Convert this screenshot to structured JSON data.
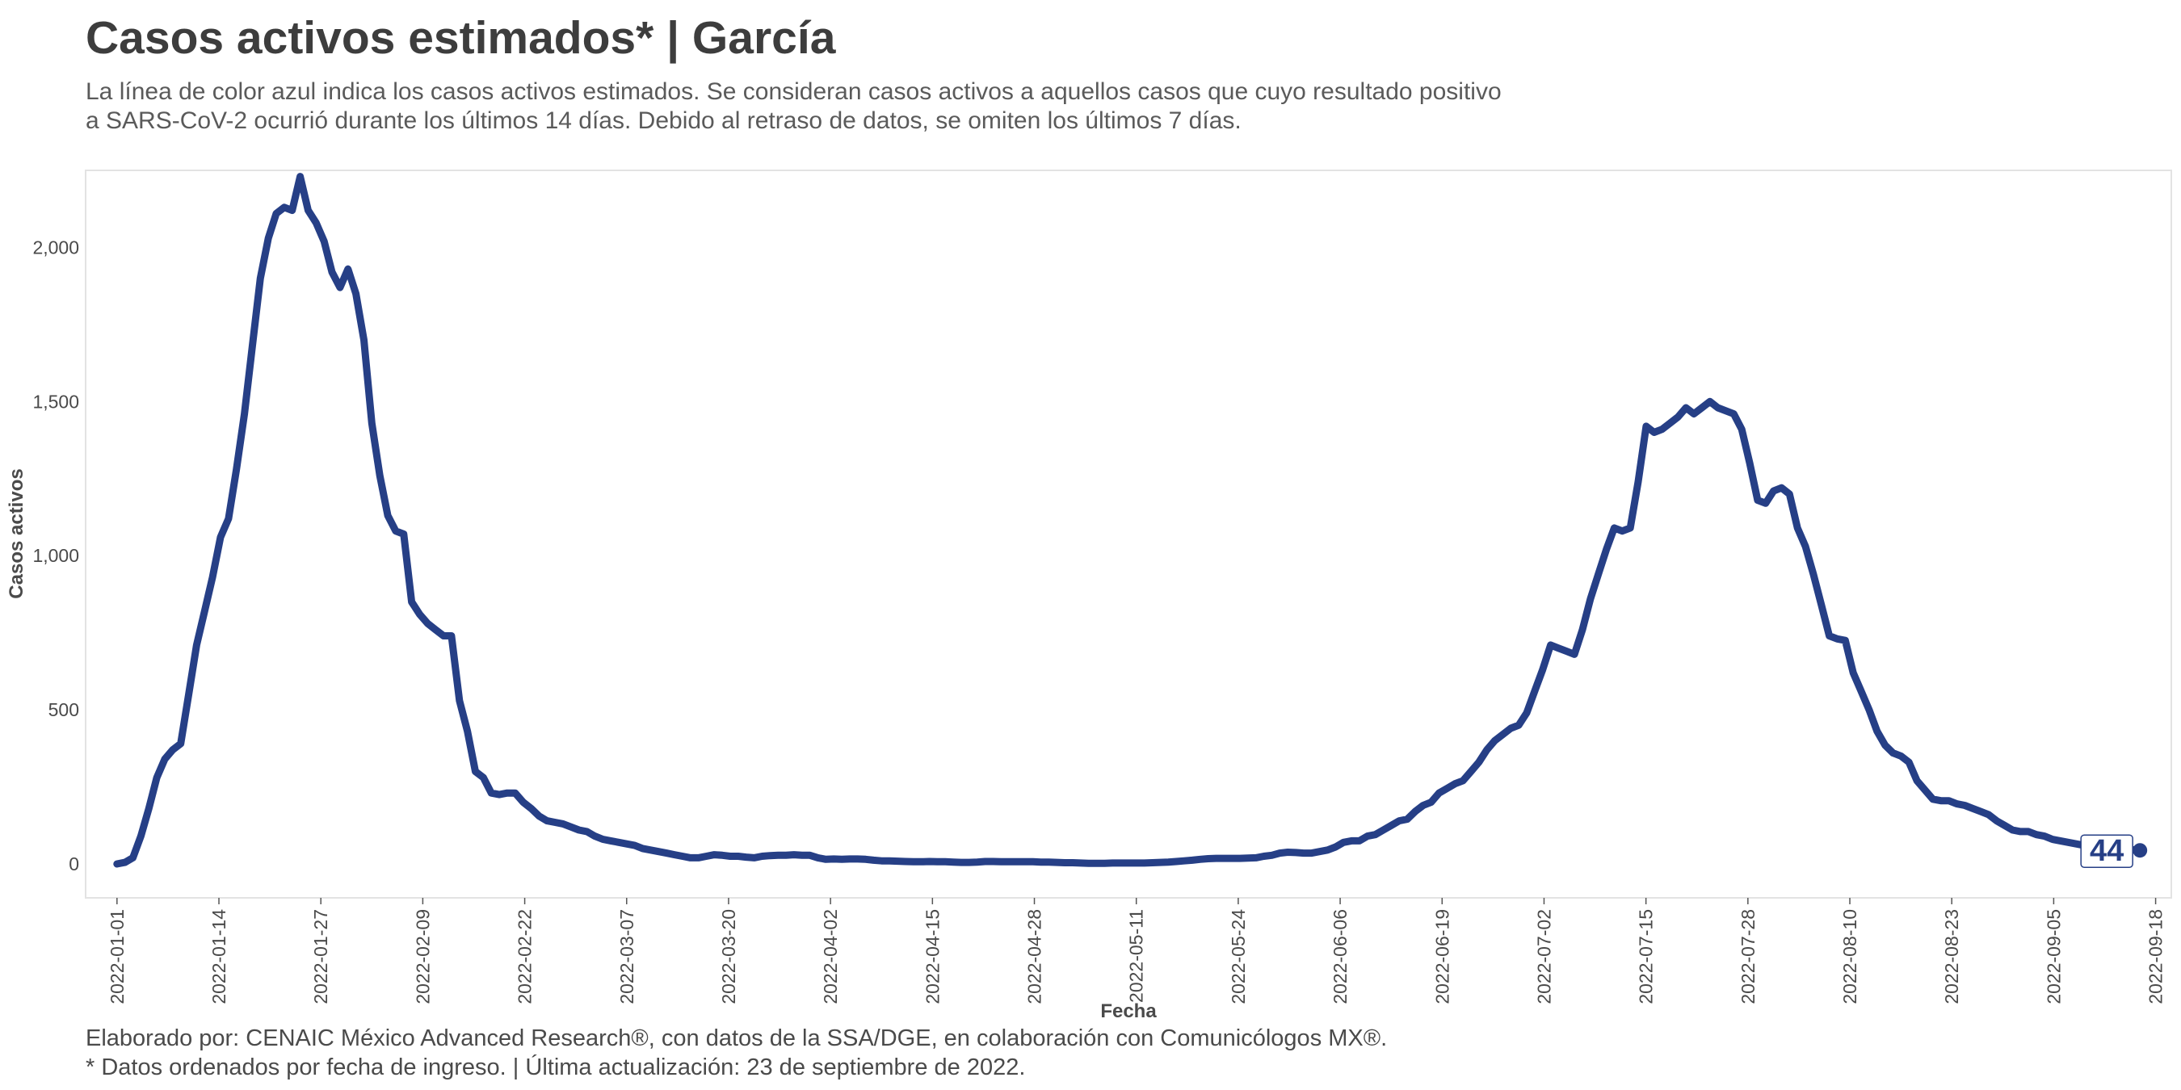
{
  "header": {
    "title": "Casos activos estimados* | García",
    "subtitle_line1": "La línea de color azul indica los casos activos estimados. Se consideran casos activos a aquellos casos que cuyo resultado positivo",
    "subtitle_line2": "a SARS-CoV-2 ocurrió durante los últimos 14 días. Debido al retraso de datos, se omiten los últimos 7 días."
  },
  "footer": {
    "line1": "Elaborado por: CENAIC México Advanced Research®, con datos de la SSA/DGE, en colaboración con Comunicólogos MX®.",
    "line2": "* Datos ordenados por fecha de ingreso. | Última actualización: 23 de septiembre de 2022."
  },
  "colors": {
    "line": "#263f86",
    "panel_border": "#e3e3e3"
  },
  "chart_data": {
    "type": "line",
    "title": "Casos activos estimados* | García",
    "xlabel": "Fecha",
    "ylabel": "Casos activos",
    "x_start": "2022-01-01",
    "x_end": "2022-09-16",
    "xlim": [
      "2021-12-28",
      "2022-09-20"
    ],
    "ylim": [
      -110,
      2250
    ],
    "y_ticks": [
      0,
      500,
      1000,
      1500,
      2000
    ],
    "y_tick_labels": [
      "0",
      "500",
      "1,000",
      "1,500",
      "2,000"
    ],
    "x_ticks": [
      "2022-01-01",
      "2022-01-14",
      "2022-01-27",
      "2022-02-09",
      "2022-02-22",
      "2022-03-07",
      "2022-03-20",
      "2022-04-02",
      "2022-04-15",
      "2022-04-28",
      "2022-05-11",
      "2022-05-24",
      "2022-06-06",
      "2022-06-19",
      "2022-07-02",
      "2022-07-15",
      "2022-07-28",
      "2022-08-10",
      "2022-08-23",
      "2022-09-05",
      "2022-09-18"
    ],
    "grid": false,
    "last_value_label": "44",
    "series": [
      {
        "values": [
          0,
          5,
          20,
          90,
          180,
          280,
          340,
          370,
          390,
          550,
          710,
          820,
          930,
          1060,
          1120,
          1280,
          1460,
          1680,
          1900,
          2030,
          2110,
          2130,
          2120,
          2230,
          2120,
          2080,
          2020,
          1920,
          1870,
          1930,
          1850,
          1700,
          1430,
          1260,
          1130,
          1080,
          1070,
          850,
          810,
          780,
          760,
          740,
          740,
          530,
          430,
          300,
          280,
          230,
          225,
          230,
          230,
          200,
          180,
          155,
          140,
          135,
          130,
          120,
          110,
          105,
          90,
          80,
          75,
          70,
          65,
          60,
          50,
          45,
          40,
          35,
          30,
          25,
          20,
          20,
          25,
          30,
          28,
          25,
          25,
          22,
          20,
          25,
          27,
          28,
          28,
          30,
          28,
          28,
          20,
          15,
          16,
          15,
          16,
          16,
          15,
          12,
          10,
          10,
          9,
          8,
          7,
          7,
          8,
          7,
          7,
          6,
          5,
          5,
          6,
          8,
          8,
          7,
          7,
          7,
          7,
          7,
          6,
          6,
          5,
          4,
          4,
          3,
          2,
          2,
          2,
          3,
          3,
          3,
          3,
          3,
          4,
          5,
          6,
          8,
          10,
          12,
          15,
          17,
          18,
          18,
          18,
          18,
          19,
          20,
          25,
          28,
          35,
          38,
          37,
          35,
          35,
          40,
          45,
          55,
          70,
          75,
          75,
          90,
          95,
          110,
          125,
          140,
          145,
          170,
          190,
          200,
          230,
          245,
          260,
          270,
          300,
          330,
          370,
          400,
          420,
          440,
          450,
          490,
          560,
          630,
          710,
          700,
          690,
          680,
          760,
          860,
          940,
          1020,
          1090,
          1080,
          1090,
          1240,
          1420,
          1400,
          1410,
          1430,
          1450,
          1480,
          1460,
          1480,
          1500,
          1480,
          1470,
          1460,
          1410,
          1300,
          1180,
          1170,
          1210,
          1220,
          1200,
          1090,
          1030,
          940,
          840,
          740,
          730,
          725,
          620,
          560,
          500,
          430,
          385,
          360,
          350,
          330,
          270,
          240,
          210,
          205,
          205,
          195,
          190,
          180,
          170,
          160,
          140,
          125,
          110,
          105,
          105,
          95,
          90,
          80,
          75,
          70,
          65,
          60,
          60,
          58,
          55,
          50,
          48,
          46,
          44
        ]
      }
    ]
  }
}
